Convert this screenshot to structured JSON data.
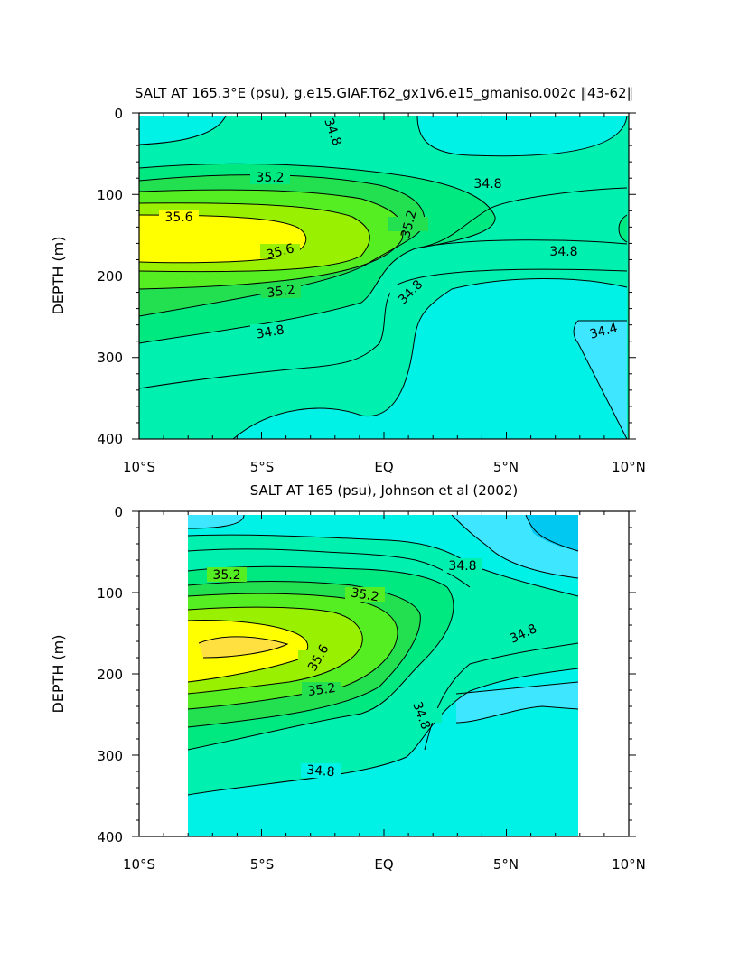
{
  "chart_data": [
    {
      "type": "contour",
      "title": "SALT AT 165.3°E (psu), g.e15.GIAF.T62_gx1v6.e15_gmaniso.002c ‖43-62‖",
      "xlabel": "",
      "ylabel": "DEPTH (m)",
      "x_ticks": [
        "10°S",
        "5°S",
        "EQ",
        "5°N",
        "10°N"
      ],
      "y_ticks": [
        "0",
        "100",
        "200",
        "300",
        "400"
      ],
      "xlim": [
        -10,
        10
      ],
      "ylim": [
        400,
        0
      ],
      "data_extent_x": [
        -10,
        10
      ],
      "contour_interval": 0.2,
      "contour_labels": [
        {
          "text": "34.8",
          "x": -5.3,
          "y": 20
        },
        {
          "text": "35.2",
          "x": -5.4,
          "y": 75
        },
        {
          "text": "34.8",
          "x": 2.8,
          "y": 81
        },
        {
          "text": "35.6",
          "x": -8.6,
          "y": 125
        },
        {
          "text": "35.2",
          "x": 0.0,
          "y": 135
        },
        {
          "text": "35.6",
          "x": -4.5,
          "y": 168
        },
        {
          "text": "34.8",
          "x": 5.0,
          "y": 165
        },
        {
          "text": "35.2",
          "x": -4.5,
          "y": 215
        },
        {
          "text": "34.8",
          "x": -0.3,
          "y": 215
        },
        {
          "text": "34.8",
          "x": -5.2,
          "y": 265
        },
        {
          "text": "34.4",
          "x": 7.2,
          "y": 265
        }
      ],
      "fill_levels": [
        {
          "range": "34.2-34.4",
          "color": "#3fe6ff"
        },
        {
          "range": "34.4-34.6",
          "color": "#00f2e6"
        },
        {
          "range": "34.6-34.8",
          "color": "#00f0b0"
        },
        {
          "range": "34.8-35.0",
          "color": "#00e880"
        },
        {
          "range": "35.0-35.2",
          "color": "#22e050"
        },
        {
          "range": "35.2-35.4",
          "color": "#55ee22"
        },
        {
          "range": "35.4-35.6",
          "color": "#99f000"
        },
        {
          "range": "35.6-35.8",
          "color": "#ffff00"
        }
      ]
    },
    {
      "type": "contour",
      "title": "SALT AT 165 (psu), Johnson et al (2002)",
      "xlabel": "",
      "ylabel": "DEPTH (m)",
      "x_ticks": [
        "10°S",
        "5°S",
        "EQ",
        "5°N",
        "10°N"
      ],
      "y_ticks": [
        "0",
        "100",
        "200",
        "300",
        "400"
      ],
      "xlim": [
        -10,
        10
      ],
      "ylim": [
        400,
        0
      ],
      "data_extent_x": [
        -8,
        8
      ],
      "contour_interval": 0.2,
      "contour_labels": [
        {
          "text": "35.2",
          "x": -8.4,
          "y": 78
        },
        {
          "text": "34.8",
          "x": 1.8,
          "y": 67
        },
        {
          "text": "35.2",
          "x": -3.2,
          "y": 102
        },
        {
          "text": "35.6",
          "x": -4.2,
          "y": 178
        },
        {
          "text": "34.8",
          "x": 5.2,
          "y": 159
        },
        {
          "text": "35.2",
          "x": -4.4,
          "y": 220
        },
        {
          "text": "34.8",
          "x": 0.9,
          "y": 258
        },
        {
          "text": "34.8",
          "x": -4.6,
          "y": 320
        }
      ],
      "fill_levels": [
        {
          "range": "34.0-34.2",
          "color": "#00c8f0"
        },
        {
          "range": "34.2-34.4",
          "color": "#3fe6ff"
        },
        {
          "range": "34.4-34.6",
          "color": "#00f2e6"
        },
        {
          "range": "34.6-34.8",
          "color": "#00f0b0"
        },
        {
          "range": "34.8-35.0",
          "color": "#00e880"
        },
        {
          "range": "35.0-35.2",
          "color": "#22e050"
        },
        {
          "range": "35.2-35.4",
          "color": "#55ee22"
        },
        {
          "range": "35.4-35.6",
          "color": "#99f000"
        },
        {
          "range": "35.6-35.8",
          "color": "#ffff00"
        },
        {
          "range": "35.8-36.0",
          "color": "#ffe040"
        }
      ]
    }
  ]
}
